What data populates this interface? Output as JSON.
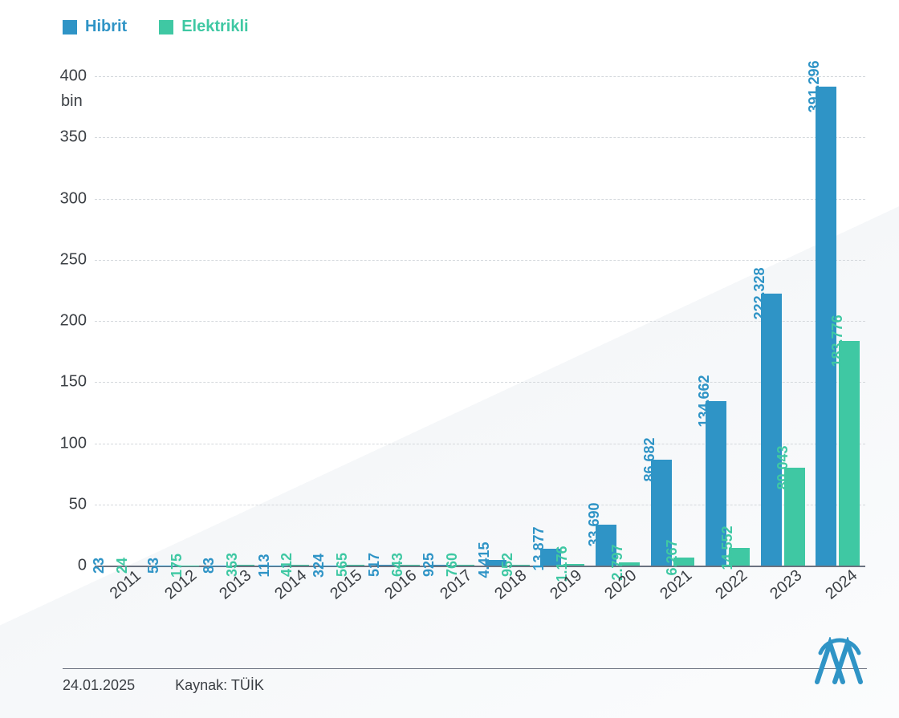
{
  "chart": {
    "type": "bar",
    "background_color": "#ffffff",
    "grid_color": "#d4d8dc",
    "axis_color": "#6b7280",
    "text_color": "#3b3f44",
    "tick_fontsize": 20,
    "value_label_fontsize": 18,
    "ylim": [
      0,
      400
    ],
    "ytick_step": 50,
    "yticks": [
      0,
      50,
      100,
      150,
      200,
      250,
      300,
      350,
      400
    ],
    "y_unit_label": "bin",
    "bar_width": 0.38,
    "bar_gap": 0.04,
    "group_gap": 0.18,
    "categories": [
      "2011",
      "2012",
      "2013",
      "2014",
      "2015",
      "2016",
      "2017",
      "2018",
      "2019",
      "2020",
      "2021",
      "2022",
      "2023",
      "2024"
    ],
    "series": [
      {
        "name": "Hibrit",
        "color": "#2f94c6",
        "values": [
          23,
          53,
          83,
          113,
          324,
          517,
          925,
          4415,
          13877,
          33690,
          86682,
          134662,
          222328,
          391296
        ],
        "labels": [
          "23",
          "53",
          "83",
          "113",
          "324",
          "517",
          "925",
          "4.415",
          "13.877",
          "33.690",
          "86.682",
          "134.662",
          "222.328",
          "391.296"
        ]
      },
      {
        "name": "Elektrikli",
        "color": "#3fc8a3",
        "values": [
          24,
          175,
          353,
          412,
          565,
          643,
          760,
          952,
          1176,
          2797,
          6267,
          14552,
          80043,
          183776
        ],
        "labels": [
          "24",
          "175",
          "353",
          "412",
          "565",
          "643",
          "760",
          "952",
          "1.176",
          "2.797",
          "6.267",
          "14.552",
          "80.043",
          "183.776"
        ]
      }
    ]
  },
  "legend": {
    "items": [
      {
        "label": "Hibrit",
        "color": "#2f94c6"
      },
      {
        "label": "Elektrikli",
        "color": "#3fc8a3"
      }
    ]
  },
  "footer": {
    "date": "24.01.2025",
    "source_prefix": "Kaynak:",
    "source_value": "TÜİK"
  },
  "logo": {
    "name": "aa-logo",
    "color": "#2f94c6"
  }
}
